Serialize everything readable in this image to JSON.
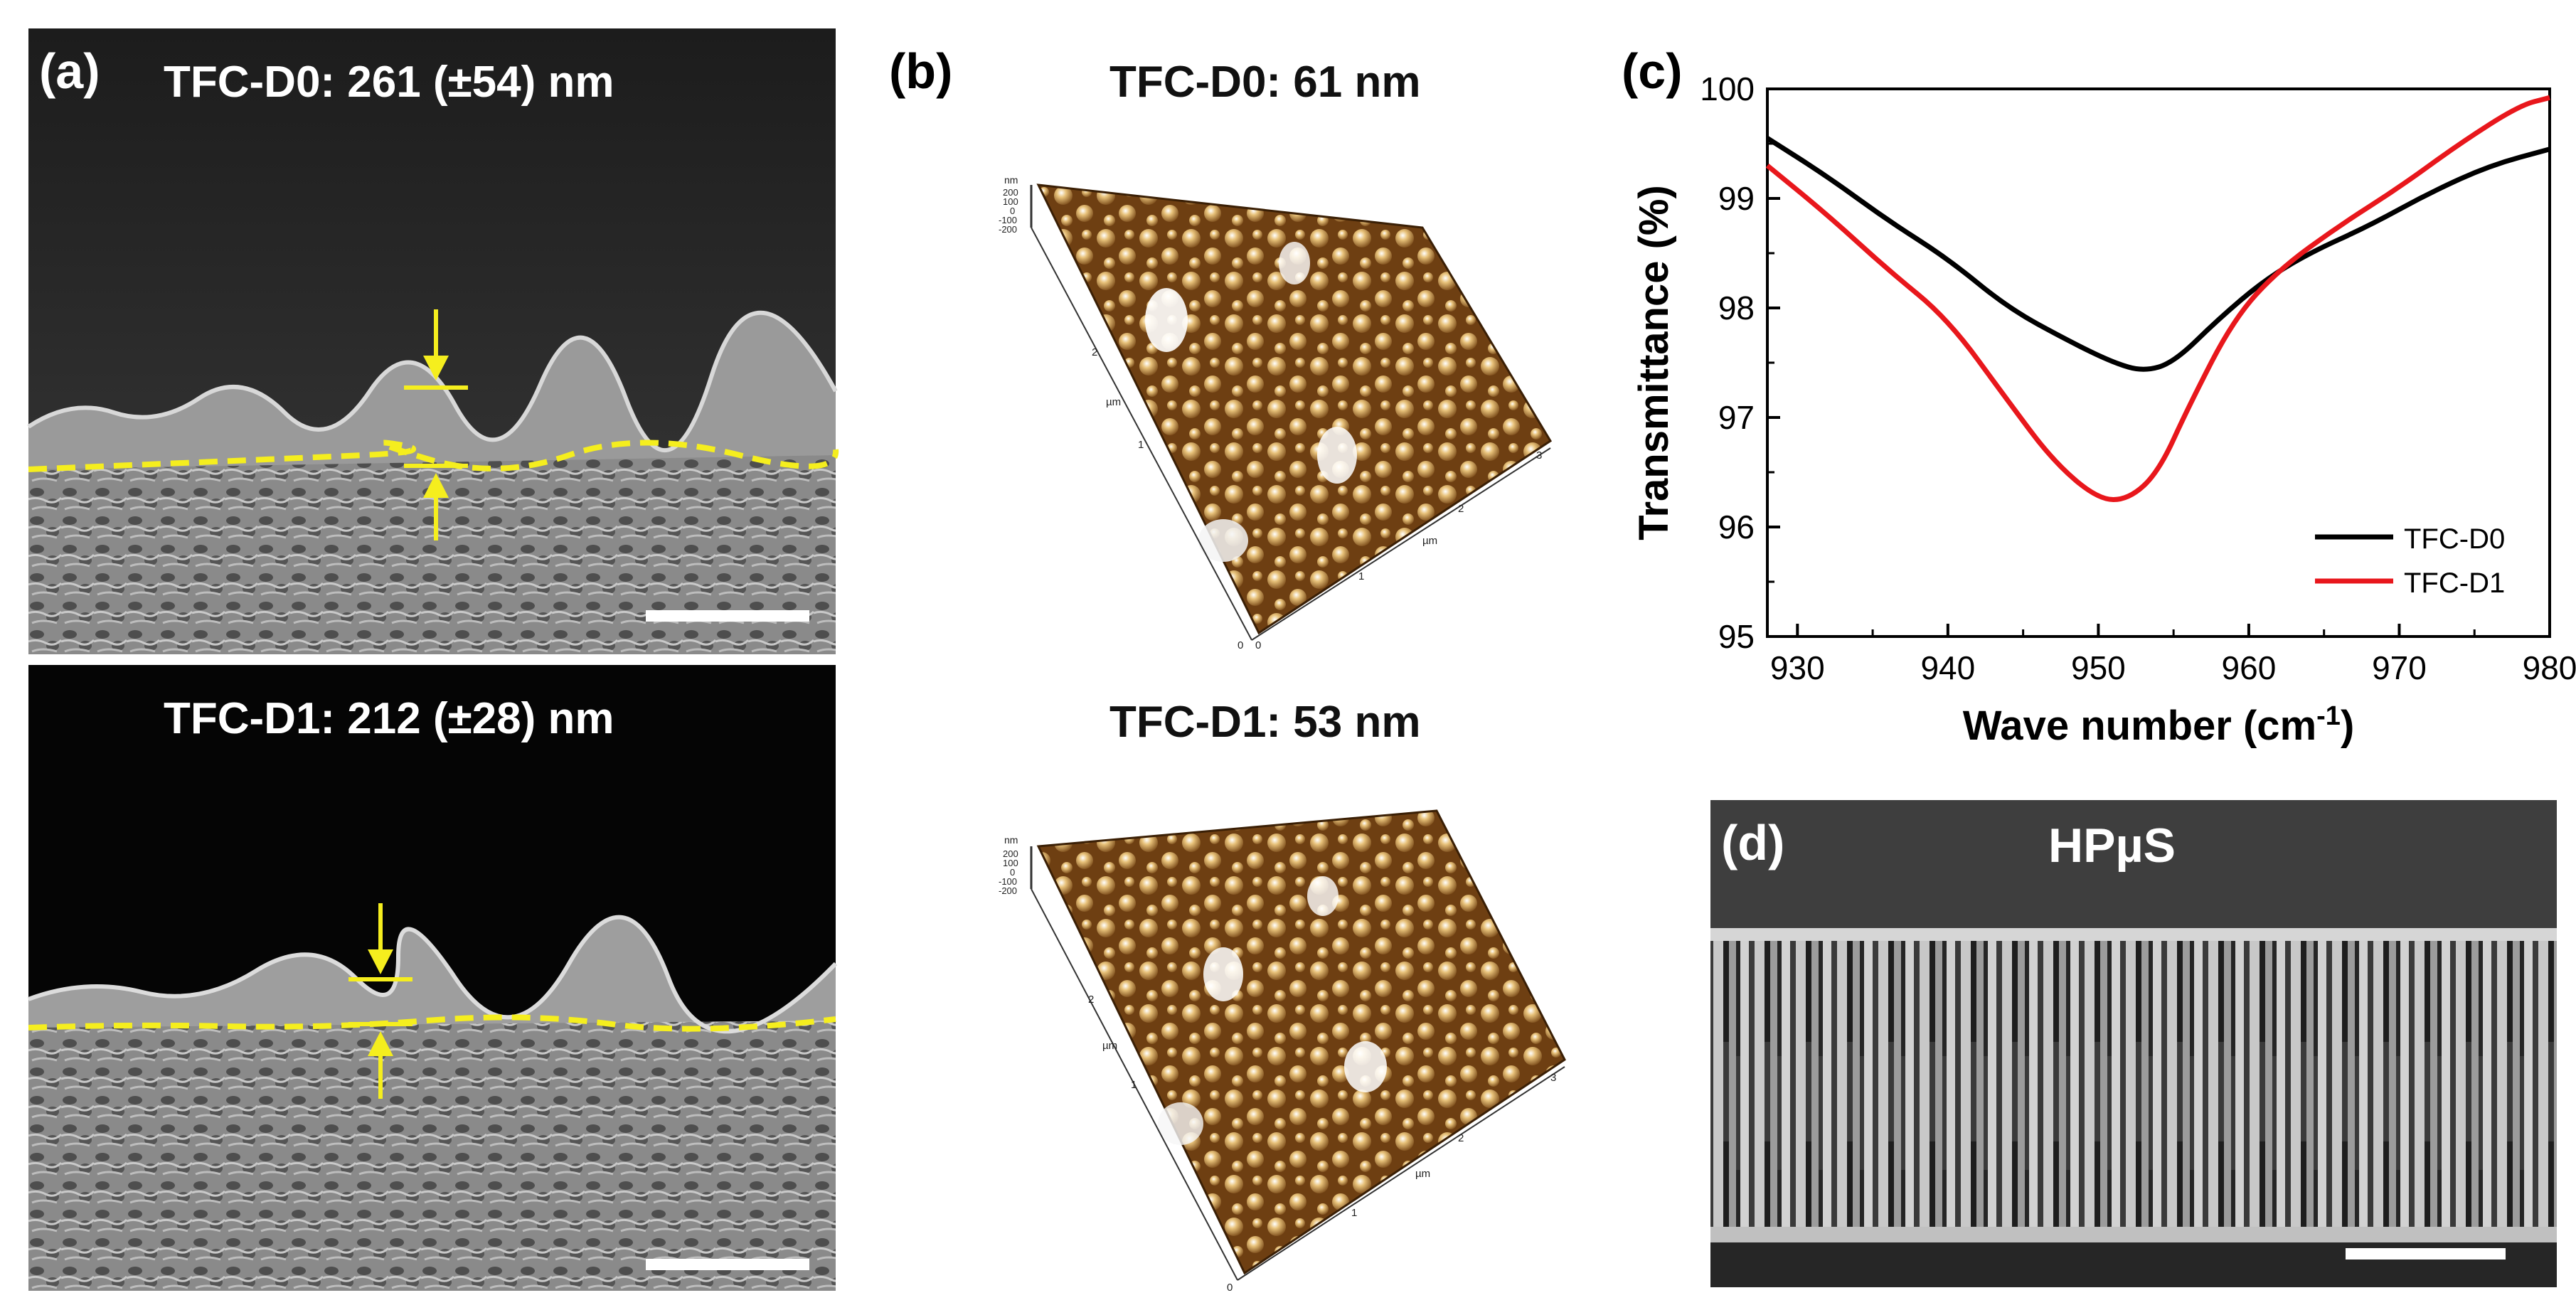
{
  "figure": {
    "panel_a": {
      "label": "(a)",
      "top_title": "TFC-D0: 261 (±54) nm",
      "bottom_title": "TFC-D1: 212 (±28) nm"
    },
    "panel_b": {
      "label": "(b)",
      "top_title": "TFC-D0: 61 nm",
      "bottom_title": "TFC-D1: 53 nm",
      "axis_unit_nm": "nm",
      "axis_unit_um": "µm",
      "z_ticks": [
        "200",
        "100",
        "0",
        "-100",
        "-200"
      ],
      "xy_ticks": [
        "0",
        "1",
        "2",
        "3"
      ]
    },
    "panel_c": {
      "label": "(c)"
    },
    "panel_d": {
      "label": "(d)",
      "title": "HPµS"
    },
    "colors": {
      "annotation_yellow": "#f5ee1e",
      "series_black": "#000000",
      "series_red": "#e8171c",
      "afm_dark": "#4a2a0c",
      "afm_light": "#e8c27a"
    }
  },
  "chart_data": {
    "type": "line",
    "xlabel": "Wave number (cm",
    "xlabel_sup": "-1",
    "xlabel_end": ")",
    "ylabel": "Transmittance (%)",
    "xlim": [
      928,
      980
    ],
    "ylim": [
      95,
      100
    ],
    "xticks": [
      930,
      940,
      950,
      960,
      970,
      980
    ],
    "yticks": [
      95,
      96,
      97,
      98,
      99,
      100
    ],
    "legend_position": "bottom-right",
    "series": [
      {
        "name": "TFC-D0",
        "color": "#000000",
        "x": [
          928,
          932,
          936,
          940,
          944,
          948,
          951,
          953,
          955,
          958,
          961,
          964,
          968,
          972,
          976,
          980
        ],
        "y": [
          99.55,
          99.2,
          98.8,
          98.45,
          98.0,
          97.7,
          97.5,
          97.42,
          97.5,
          97.9,
          98.25,
          98.5,
          98.75,
          99.05,
          99.3,
          99.45
        ]
      },
      {
        "name": "TFC-D1",
        "color": "#e8171c",
        "x": [
          928,
          932,
          936,
          940,
          944,
          947,
          950,
          952,
          954,
          956,
          959,
          962,
          966,
          970,
          974,
          978,
          980
        ],
        "y": [
          99.3,
          98.85,
          98.35,
          97.9,
          97.15,
          96.6,
          96.25,
          96.25,
          96.5,
          97.1,
          97.9,
          98.35,
          98.75,
          99.1,
          99.5,
          99.85,
          99.92
        ]
      }
    ]
  }
}
